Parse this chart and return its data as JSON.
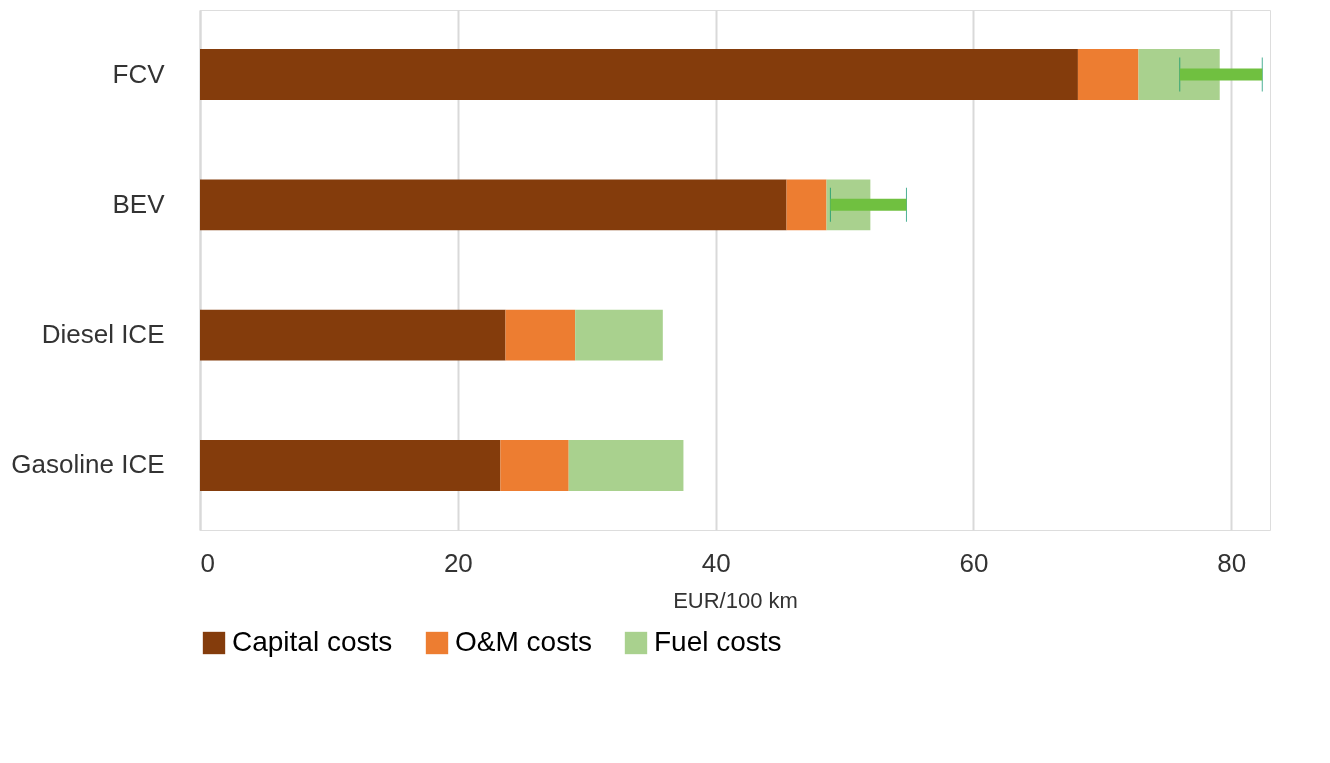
{
  "chart_data": {
    "type": "bar",
    "orientation": "horizontal",
    "stacked": true,
    "xlabel": "EUR/100 km",
    "categories": [
      "FCV",
      "BEV",
      "Diesel ICE",
      "Gasoline ICE"
    ],
    "series": [
      {
        "name": "Capital costs",
        "color": "#843c0c",
        "values": [
          68.1,
          45.5,
          23.7,
          23.3
        ]
      },
      {
        "name": "O&M costs",
        "color": "#ed7d31",
        "values": [
          4.7,
          3.1,
          5.4,
          5.3
        ]
      },
      {
        "name": "Fuel costs",
        "color": "#a9d18e",
        "values": [
          6.3,
          3.4,
          6.8,
          8.9
        ],
        "errors": [
          [
            76.0,
            82.4
          ],
          [
            48.9,
            54.8
          ],
          null,
          null
        ]
      }
    ],
    "xlim": [
      0,
      83
    ],
    "xticks": [
      0,
      20,
      40,
      60,
      80
    ],
    "grid": "x",
    "legend": "bottom"
  }
}
